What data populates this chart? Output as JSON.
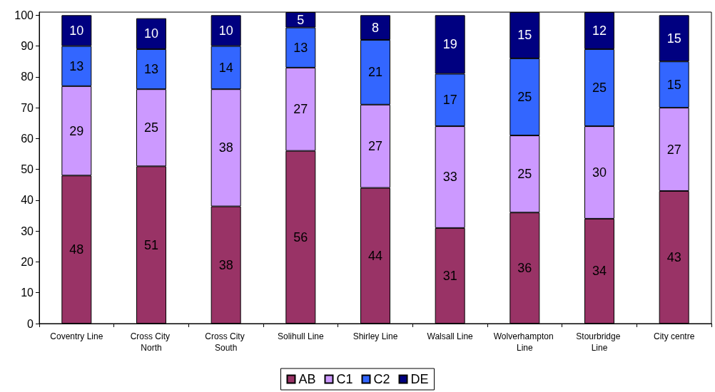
{
  "chart_data": {
    "type": "bar",
    "stacked": true,
    "categories": [
      "Coventry Line",
      "Cross City North",
      "Cross City South",
      "Solihull Line",
      "Shirley Line",
      "Walsall Line",
      "Wolverhampton Line",
      "Stourbridge Line",
      "City centre"
    ],
    "series": [
      {
        "name": "AB",
        "color": "#993366",
        "values": [
          48,
          51,
          38,
          56,
          44,
          31,
          36,
          34,
          43
        ]
      },
      {
        "name": "C1",
        "color": "#cc99ff",
        "values": [
          29,
          25,
          38,
          27,
          27,
          33,
          25,
          30,
          27
        ]
      },
      {
        "name": "C2",
        "color": "#3366ff",
        "values": [
          13,
          13,
          14,
          13,
          21,
          17,
          25,
          25,
          15
        ]
      },
      {
        "name": "DE",
        "color": "#000080",
        "values": [
          10,
          10,
          10,
          5,
          8,
          19,
          15,
          12,
          15
        ]
      }
    ],
    "ylim": [
      0,
      101
    ],
    "yticks": [
      0,
      10,
      20,
      30,
      40,
      50,
      60,
      70,
      80,
      90,
      100
    ],
    "grid": false,
    "legend": "bottom",
    "data_labels": true
  }
}
